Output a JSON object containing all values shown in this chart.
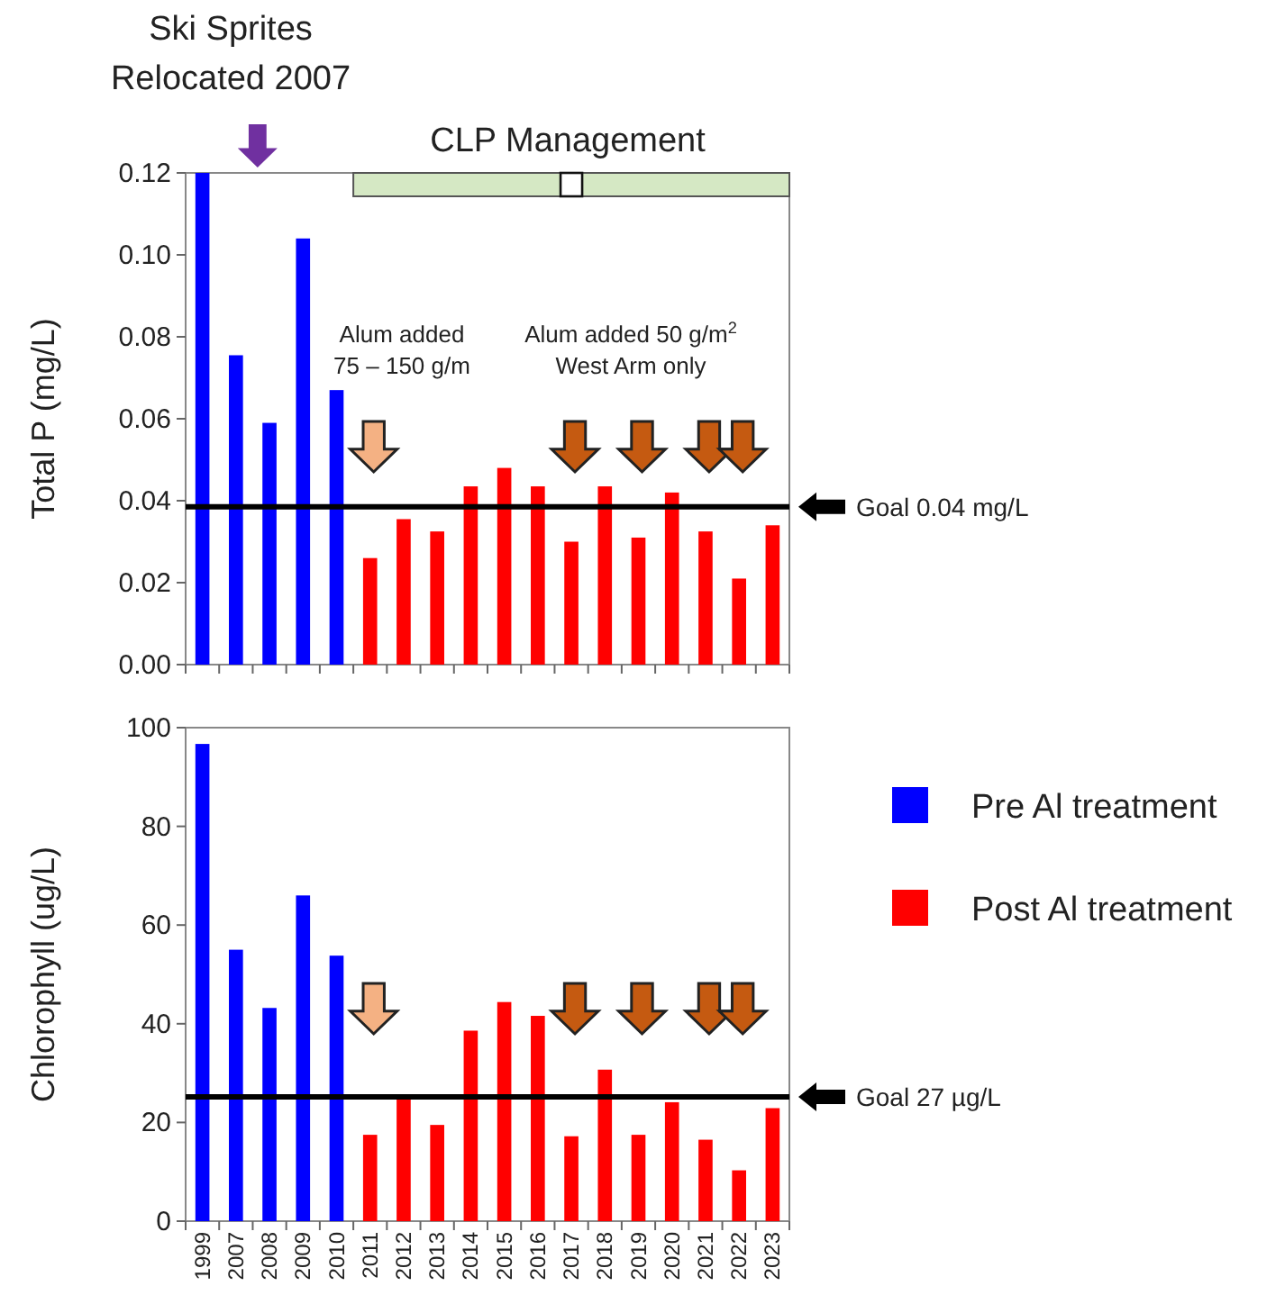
{
  "chart_data": [
    {
      "type": "bar",
      "ylabel": "Total P (mg/L)",
      "stacked": true,
      "legend": false,
      "tick_labels": "y",
      "categories": [
        "1999",
        "2007",
        "2008",
        "2009",
        "2010",
        "2011",
        "2012",
        "2013",
        "2014",
        "2015",
        "2016",
        "2017",
        "2018",
        "2019",
        "2020",
        "2021",
        "2022",
        "2023"
      ],
      "series": [
        {
          "color": "#0000ff",
          "values": [
            0.12,
            0.0755,
            0.059,
            0.104,
            0.067,
            null,
            null,
            null,
            null,
            null,
            null,
            null,
            null,
            null,
            null,
            null,
            null,
            null
          ]
        },
        {
          "color": "#ff0000",
          "values": [
            null,
            null,
            null,
            null,
            null,
            0.026,
            0.0355,
            0.0325,
            0.0435,
            0.048,
            0.0435,
            0.03,
            0.0435,
            0.031,
            0.042,
            0.0325,
            0.021,
            0.034
          ]
        }
      ],
      "ylim": [
        0,
        0.12
      ],
      "yticks": [
        {
          "value": 0,
          "label": "0.00"
        },
        {
          "value": 0.02,
          "label": "0.02"
        },
        {
          "value": 0.04,
          "label": "0.04"
        },
        {
          "value": 0.06,
          "label": "0.06"
        },
        {
          "value": 0.08,
          "label": "0.08"
        },
        {
          "value": 0.1,
          "label": "0.10"
        },
        {
          "value": 0.12,
          "label": "0.12"
        }
      ],
      "ref_lines": [
        {
          "axis": "y",
          "value": 0.0385,
          "label": "Goal 0.04 mg/L",
          "color": "#000000"
        }
      ],
      "bands": [
        {
          "axis": "x",
          "from": "2011",
          "to": "2023",
          "label": "CLP Management",
          "color": "#d5e8c4"
        }
      ],
      "annotations": [
        "Ski Sprites\nRelocated 2007",
        "Alum added\n75 – 150 g/m",
        "Alum added 50 g/m$^{2}$\nWest Arm only"
      ]
    },
    {
      "type": "bar",
      "ylabel": "Chlorophyll (ug/L)",
      "stacked": true,
      "legend": "right",
      "categories": [
        "1999",
        "2007",
        "2008",
        "2009",
        "2010",
        "2011",
        "2012",
        "2013",
        "2014",
        "2015",
        "2016",
        "2017",
        "2018",
        "2019",
        "2020",
        "2021",
        "2022",
        "2023"
      ],
      "series": [
        {
          "name": "Pre Al treatment",
          "color": "#0000ff",
          "values": [
            96.7,
            55,
            43.2,
            66,
            53.8,
            null,
            null,
            null,
            null,
            null,
            null,
            null,
            null,
            null,
            null,
            null,
            null,
            null
          ]
        },
        {
          "name": "Post Al treatment",
          "color": "#ff0000",
          "values": [
            null,
            null,
            null,
            null,
            null,
            17.5,
            24.9,
            19.5,
            38.6,
            44.4,
            41.6,
            17.2,
            30.7,
            17.5,
            24.1,
            16.5,
            10.3,
            22.9
          ]
        }
      ],
      "ylim": [
        0,
        100
      ],
      "yticks": [
        0,
        20,
        40,
        60,
        80,
        100
      ],
      "ref_lines": [
        {
          "axis": "y",
          "value": 25.2,
          "label": "Goal 27 µg/L",
          "color": "#000000"
        }
      ]
    }
  ]
}
